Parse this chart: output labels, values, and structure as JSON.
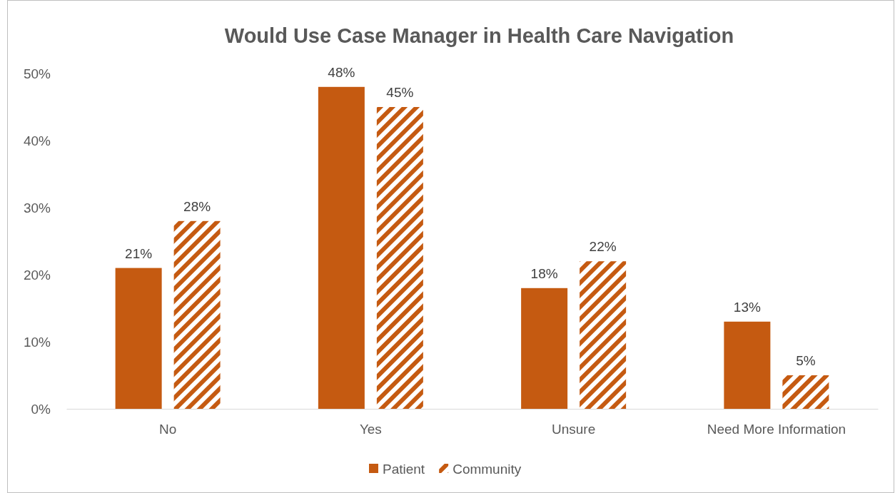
{
  "chart_data": {
    "type": "bar",
    "title": "Would Use Case Manager in Health Care Navigation",
    "categories": [
      "No",
      "Yes",
      "Unsure",
      "Need More Information"
    ],
    "series": [
      {
        "name": "Patient",
        "color": "#c55a11",
        "values": [
          21,
          48,
          18,
          13
        ],
        "value_labels": [
          "21%",
          "48%",
          "18%",
          "13%"
        ]
      },
      {
        "name": "Community",
        "color": "#c55a11",
        "values": [
          28,
          45,
          22,
          5
        ],
        "value_labels": [
          "28%",
          "45%",
          "22%",
          "5%"
        ]
      }
    ],
    "ylim": [
      0,
      50
    ],
    "yticks": [
      {
        "value": 0,
        "label": "0%"
      },
      {
        "value": 10,
        "label": "10%"
      },
      {
        "value": 20,
        "label": "20%"
      },
      {
        "value": 30,
        "label": "30%"
      },
      {
        "value": 40,
        "label": "40%"
      },
      {
        "value": 50,
        "label": "50%"
      }
    ],
    "grid": false,
    "legend": "bottom"
  }
}
